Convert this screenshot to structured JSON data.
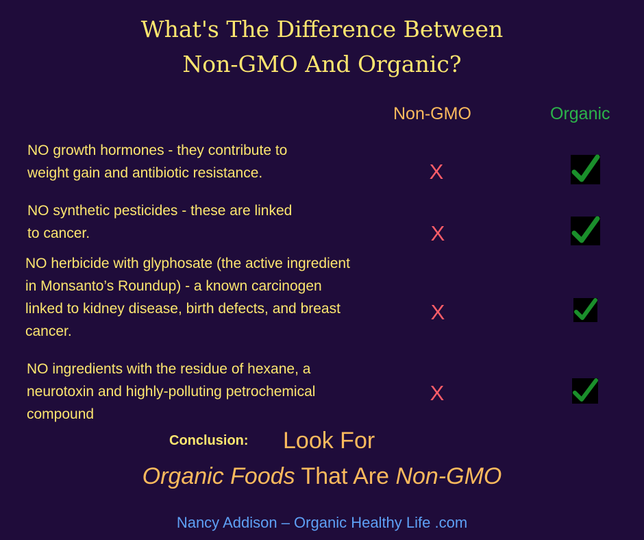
{
  "title": {
    "line1": "What's The Difference Between",
    "line2": "Non-GMO And Organic?"
  },
  "columns": {
    "non_gmo": "Non-GMO",
    "organic": "Organic"
  },
  "rows": [
    {
      "lines": [
        "NO growth hormones - they contribute to",
        "weight gain and antibiotic resistance."
      ],
      "non_gmo_mark": "X",
      "organic_mark": "check-icon"
    },
    {
      "lines": [
        "NO synthetic pesticides - these are linked",
        "to cancer."
      ],
      "non_gmo_mark": "X",
      "organic_mark": "check-icon"
    },
    {
      "lines": [
        "NO herbicide with glyphosate  (the active ingredient",
        "in Monsanto’s Roundup) - a known carcinogen",
        "linked to kidney disease, birth defects, and  breast",
        "cancer."
      ],
      "non_gmo_mark": "X",
      "organic_mark": "check-icon"
    },
    {
      "lines": [
        "NO ingredients with the residue of hexane,  a",
        "neurotoxin and highly-polluting petrochemical",
        "compound"
      ],
      "non_gmo_mark": "X",
      "organic_mark": "check-icon"
    }
  ],
  "conclusion": {
    "label": "Conclusion:",
    "line1": "Look For",
    "line2_part1": "Organic Foods",
    "line2_part2": " That Are ",
    "line2_part3": "Non-GMO"
  },
  "footer": "Nancy Addison –  Organic Healthy Life .com",
  "colors": {
    "background": "#1f0c3a",
    "title": "#fde66f",
    "non_gmo_header": "#fbba5d",
    "organic_header": "#2cb34a",
    "x_mark": "#ff5d68",
    "check": "#1a8f2b",
    "footer": "#5ea0f5"
  }
}
